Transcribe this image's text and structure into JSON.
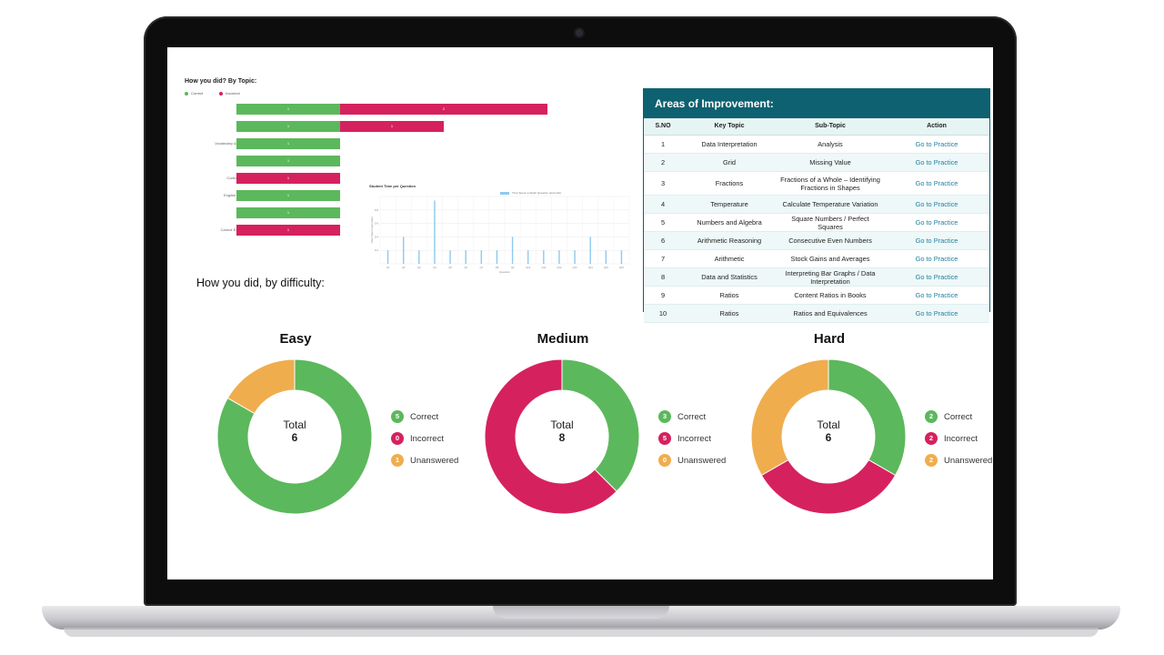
{
  "topic_chart": {
    "title": "How you did? By Topic:",
    "legend": {
      "correct": "Correct",
      "incorrect": "Incorrect"
    },
    "rows": [
      {
        "label": "Vocabulary",
        "correct": 1,
        "incorrect": 2,
        "correct_text": "1",
        "incorrect_text": "2"
      },
      {
        "label": "Analogies",
        "correct": 1,
        "incorrect": 1,
        "correct_text": "1",
        "incorrect_text": "1"
      },
      {
        "label": "Vocabulary & Reasoning",
        "correct": 1,
        "incorrect": 0,
        "correct_text": "1",
        "incorrect_text": ""
      },
      {
        "label": "Anagram",
        "correct": 1,
        "incorrect": 0,
        "correct_text": "1",
        "incorrect_text": ""
      },
      {
        "label": "Coding/Decoding",
        "correct": 0,
        "incorrect": 1,
        "correct_text": "",
        "incorrect_text": "1"
      },
      {
        "label": "English Vocabulary",
        "correct": 1,
        "incorrect": 0,
        "correct_text": "1",
        "incorrect_text": ""
      },
      {
        "label": "Analogy",
        "correct": 1,
        "incorrect": 0,
        "correct_text": "1",
        "incorrect_text": ""
      },
      {
        "label": "Cannot Exist Without",
        "correct": 0,
        "incorrect": 1,
        "correct_text": "",
        "incorrect_text": "1"
      }
    ]
  },
  "chart_data": {
    "type": "bar",
    "title": "Student Time per Question",
    "legend": "Time Spent on Each Question (seconds)",
    "xlabel": "Question",
    "ylabel": "Time Spent (seconds)",
    "categories": [
      "Q1",
      "Q2",
      "Q3",
      "Q4",
      "Q5",
      "Q6",
      "Q7",
      "Q8",
      "Q9",
      "Q10",
      "Q11",
      "Q12",
      "Q13",
      "Q14",
      "Q15",
      "Q16"
    ],
    "y_ticks": [
      "0.2",
      "0.4",
      "0.6",
      "0.8"
    ],
    "values": [
      1,
      2,
      1,
      4.7,
      1,
      1,
      1,
      1,
      2,
      1,
      1,
      1,
      1,
      2,
      1,
      1
    ],
    "ylim": [
      0,
      5
    ],
    "grid": true
  },
  "areas": {
    "title": "Areas of Improvement:",
    "columns": [
      "S.NO",
      "Key Topic",
      "Sub-Topic",
      "Action"
    ],
    "rows": [
      {
        "sno": "1",
        "topic": "Data Interpretation",
        "sub": "Analysis",
        "action": "Go to Practice"
      },
      {
        "sno": "2",
        "topic": "Grid",
        "sub": "Missing Value",
        "action": "Go to Practice"
      },
      {
        "sno": "3",
        "topic": "Fractions",
        "sub": "Fractions of a Whole – Identifying Fractions in Shapes",
        "action": "Go to Practice"
      },
      {
        "sno": "4",
        "topic": "Temperature",
        "sub": "Calculate Temperature Variation",
        "action": "Go to Practice"
      },
      {
        "sno": "5",
        "topic": "Numbers and Algebra",
        "sub": "Square Numbers / Perfect Squares",
        "action": "Go to Practice"
      },
      {
        "sno": "6",
        "topic": "Arithmetic Reasoning",
        "sub": "Consecutive Even Numbers",
        "action": "Go to Practice"
      },
      {
        "sno": "7",
        "topic": "Arithmetic",
        "sub": "Stock Gains and Averages",
        "action": "Go to Practice"
      },
      {
        "sno": "8",
        "topic": "Data and Statistics",
        "sub": "Interpreting Bar Graphs / Data Interpretation",
        "action": "Go to Practice"
      },
      {
        "sno": "9",
        "topic": "Ratios",
        "sub": "Content Ratios in Books",
        "action": "Go to Practice"
      },
      {
        "sno": "10",
        "topic": "Ratios",
        "sub": "Ratios and Equivalences",
        "action": "Go to Practice"
      }
    ]
  },
  "difficulty": {
    "heading": "How you did, by difficulty:",
    "total_label": "Total",
    "labels": {
      "correct": "Correct",
      "incorrect": "Incorrect",
      "unanswered": "Unanswered"
    },
    "colors": {
      "correct": "#5cb85c",
      "incorrect": "#d6215f",
      "unanswered": "#f0ad4e"
    },
    "donuts": [
      {
        "name": "Easy",
        "total": "6",
        "correct": 5,
        "incorrect": 0,
        "unanswered": 1
      },
      {
        "name": "Medium",
        "total": "8",
        "correct": 3,
        "incorrect": 5,
        "unanswered": 0
      },
      {
        "name": "Hard",
        "total": "6",
        "correct": 2,
        "incorrect": 2,
        "unanswered": 2
      }
    ]
  }
}
